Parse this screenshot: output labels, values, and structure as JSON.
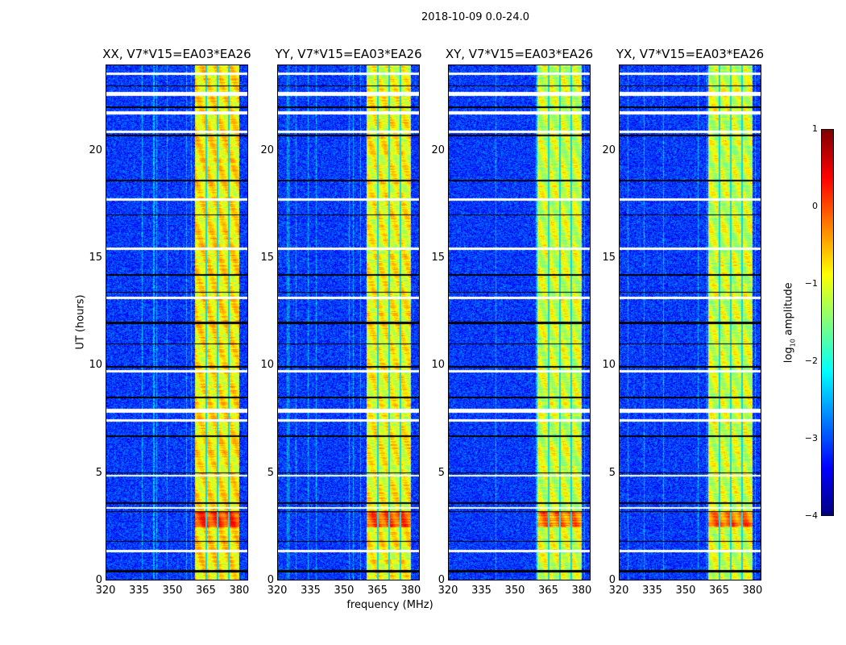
{
  "chart_data": {
    "type": "heatmap",
    "title": "2018-10-09 0.0-24.0",
    "xlabel": "frequency (MHz)",
    "ylabel": "UT (hours)",
    "xlim": [
      320,
      384
    ],
    "ylim": [
      0,
      24
    ],
    "xticks": [
      "320",
      "335",
      "350",
      "365",
      "380"
    ],
    "yticks": [
      "0",
      "5",
      "10",
      "15",
      "20"
    ],
    "panels": [
      {
        "title": "XX, V7*V15=EA03*EA26",
        "band_level": -0.8
      },
      {
        "title": "YY, V7*V15=EA03*EA26",
        "band_level": -0.9
      },
      {
        "title": "XY, V7*V15=EA03*EA26",
        "band_level": -1.1
      },
      {
        "title": "YX, V7*V15=EA03*EA26",
        "band_level": -1.1
      }
    ],
    "background_level": -3.1,
    "signal_band_mhz": [
      360,
      380
    ],
    "subband_gaps_mhz": [
      365,
      370,
      375
    ],
    "flagged_hours_white": [
      [
        23.55,
        23.65
      ],
      [
        22.55,
        22.75
      ],
      [
        21.7,
        21.85
      ],
      [
        20.85,
        20.95
      ],
      [
        17.7,
        17.8
      ],
      [
        15.4,
        15.5
      ],
      [
        13.1,
        13.2
      ],
      [
        9.7,
        9.8
      ],
      [
        7.8,
        8.0
      ],
      [
        7.4,
        7.5
      ],
      [
        4.85,
        4.95
      ],
      [
        3.35,
        3.45
      ],
      [
        1.35,
        1.45
      ]
    ],
    "flagged_hours_black": [
      [
        23.0,
        23.06
      ],
      [
        22.0,
        22.05
      ],
      [
        20.7,
        20.75
      ],
      [
        18.6,
        18.65
      ],
      [
        17.0,
        17.05
      ],
      [
        14.2,
        14.25
      ],
      [
        13.4,
        13.45
      ],
      [
        11.95,
        12.05
      ],
      [
        11.0,
        11.05
      ],
      [
        9.9,
        10.0
      ],
      [
        8.5,
        8.55
      ],
      [
        6.7,
        6.75
      ],
      [
        5.0,
        5.05
      ],
      [
        3.6,
        3.65
      ],
      [
        3.2,
        3.25
      ],
      [
        1.8,
        1.85
      ],
      [
        0.4,
        0.5
      ]
    ],
    "colorbar": {
      "label_prefix": "log",
      "label_sub": "10",
      "label_suffix": " amplitude",
      "colormap": "jet",
      "range": [
        -4,
        1
      ],
      "ticks": [
        "1",
        "0",
        "−1",
        "−2",
        "−3",
        "−4"
      ]
    }
  }
}
